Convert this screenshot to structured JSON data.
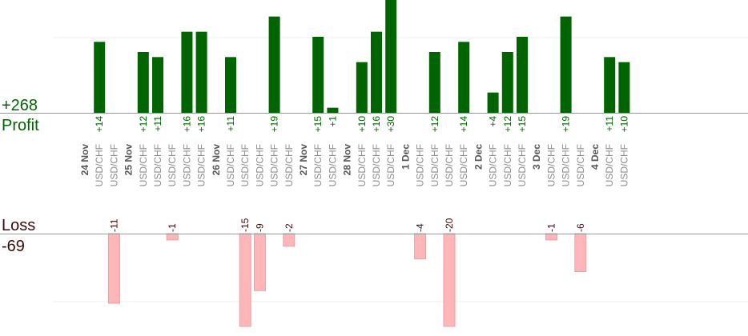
{
  "summary": {
    "profit_label": "Profit",
    "profit_total": "+268",
    "loss_label": "Loss",
    "loss_total": "-69"
  },
  "colors": {
    "profit_bar": "#006400",
    "profit_text": "#006400",
    "loss_bar": "#ffb6b9",
    "loss_text": "#3a0a0a",
    "pair_text": "#8c8c8c",
    "date_text": "#555555",
    "axis": "#999999",
    "grid": "#eeeeee"
  },
  "chart_data": {
    "type": "bar",
    "ylim_profit": [
      0,
      15
    ],
    "ylim_loss": [
      -12,
      0
    ],
    "columns": [
      {
        "label": "24 Nov",
        "kind": "date"
      },
      {
        "label": "USD/CHF",
        "kind": "trade",
        "value": 14
      },
      {
        "label": "USD/CHF",
        "kind": "trade",
        "value": -11
      },
      {
        "label": "25 Nov",
        "kind": "date"
      },
      {
        "label": "USD/CHF",
        "kind": "trade",
        "value": 12
      },
      {
        "label": "USD/CHF",
        "kind": "trade",
        "value": 11
      },
      {
        "label": "USD/CHF",
        "kind": "trade",
        "value": -1
      },
      {
        "label": "USD/CHF",
        "kind": "trade",
        "value": 16
      },
      {
        "label": "USD/CHF",
        "kind": "trade",
        "value": 16
      },
      {
        "label": "26 Nov",
        "kind": "date"
      },
      {
        "label": "USD/CHF",
        "kind": "trade",
        "value": 11
      },
      {
        "label": "USD/CHF",
        "kind": "trade",
        "value": -15
      },
      {
        "label": "USD/CHF",
        "kind": "trade",
        "value": -9
      },
      {
        "label": "USD/CHF",
        "kind": "trade",
        "value": 19
      },
      {
        "label": "USD/CHF",
        "kind": "trade",
        "value": -2
      },
      {
        "label": "27 Nov",
        "kind": "date"
      },
      {
        "label": "USD/CHF",
        "kind": "trade",
        "value": 15
      },
      {
        "label": "USD/CHF",
        "kind": "trade",
        "value": 1
      },
      {
        "label": "28 Nov",
        "kind": "date"
      },
      {
        "label": "USD/CHF",
        "kind": "trade",
        "value": 10
      },
      {
        "label": "USD/CHF",
        "kind": "trade",
        "value": 16
      },
      {
        "label": "USD/CHF",
        "kind": "trade",
        "value": 30
      },
      {
        "label": "1 Dec",
        "kind": "date"
      },
      {
        "label": "USD/CHF",
        "kind": "trade",
        "value": -4
      },
      {
        "label": "USD/CHF",
        "kind": "trade",
        "value": 12
      },
      {
        "label": "USD/CHF",
        "kind": "trade",
        "value": -20
      },
      {
        "label": "USD/CHF",
        "kind": "trade",
        "value": 14
      },
      {
        "label": "2 Dec",
        "kind": "date"
      },
      {
        "label": "USD/CHF",
        "kind": "trade",
        "value": 4
      },
      {
        "label": "USD/CHF",
        "kind": "trade",
        "value": 12
      },
      {
        "label": "USD/CHF",
        "kind": "trade",
        "value": 15
      },
      {
        "label": "3 Dec",
        "kind": "date"
      },
      {
        "label": "USD/CHF",
        "kind": "trade",
        "value": -1
      },
      {
        "label": "USD/CHF",
        "kind": "trade",
        "value": 19
      },
      {
        "label": "USD/CHF",
        "kind": "trade",
        "value": -6
      },
      {
        "label": "4 Dec",
        "kind": "date"
      },
      {
        "label": "USD/CHF",
        "kind": "trade",
        "value": 11
      },
      {
        "label": "USD/CHF",
        "kind": "trade",
        "value": 10
      }
    ]
  }
}
